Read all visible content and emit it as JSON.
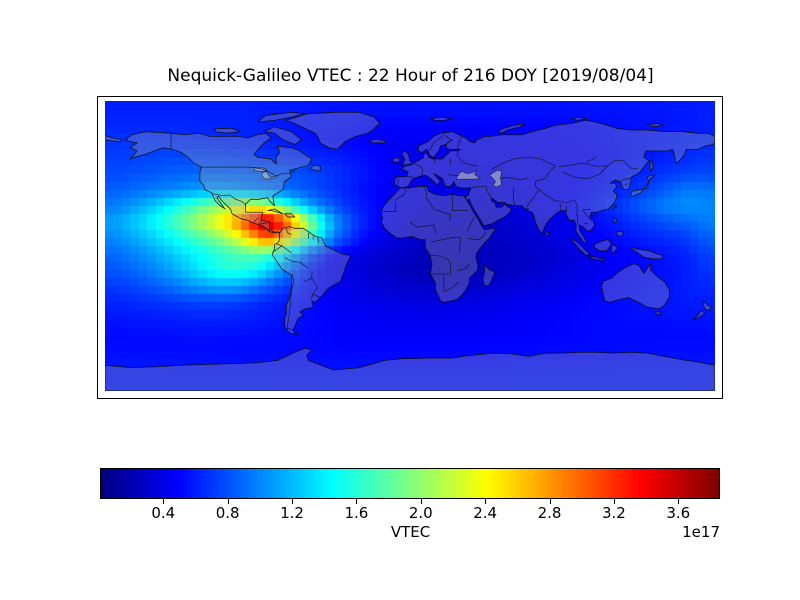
{
  "figure": {
    "title": "Nequick-Galileo VTEC : 22 Hour of 216 DOY [2019/08/04]",
    "background_color": "#ffffff"
  },
  "colorbar": {
    "label": "VTEC",
    "offset_label": "1e17",
    "colormap": "jet",
    "vmin": 0.01,
    "vmax": 3.85,
    "tick_labels": [
      "0.4",
      "0.8",
      "1.2",
      "1.6",
      "2.0",
      "2.4",
      "2.8",
      "3.2",
      "3.6"
    ],
    "tick_values": [
      0.4,
      0.8,
      1.2,
      1.6,
      2.0,
      2.4,
      2.8,
      3.2,
      3.6
    ]
  },
  "chart_data": {
    "type": "heatmap",
    "title": "Nequick-Galileo VTEC : 22 Hour of 216 DOY [2019/08/04]",
    "colorbar_label": "VTEC",
    "value_scale": "1e17",
    "colormap": "jet",
    "vmin": 0.01,
    "vmax": 3.85,
    "projection": "equirectangular world map with coastlines and country borders",
    "lon_range": [
      -180,
      180
    ],
    "lat_range": [
      -90,
      90
    ],
    "grid_lon_start": -175,
    "grid_lon_step": 10,
    "grid_lat_start": 85,
    "grid_lat_step": -10,
    "values_by_lat_row": [
      [
        0.6,
        0.6,
        0.6,
        0.6,
        0.6,
        0.6,
        0.6,
        0.6,
        0.6,
        0.58,
        0.58,
        0.58,
        0.56,
        0.56,
        0.55,
        0.55,
        0.55,
        0.55,
        0.55,
        0.55,
        0.55,
        0.55,
        0.55,
        0.55,
        0.55,
        0.55,
        0.55,
        0.55,
        0.56,
        0.56,
        0.56,
        0.57,
        0.57,
        0.58,
        0.58,
        0.6
      ],
      [
        0.63,
        0.63,
        0.63,
        0.63,
        0.63,
        0.62,
        0.62,
        0.62,
        0.62,
        0.6,
        0.58,
        0.57,
        0.56,
        0.55,
        0.54,
        0.52,
        0.5,
        0.5,
        0.5,
        0.5,
        0.5,
        0.5,
        0.5,
        0.5,
        0.5,
        0.5,
        0.5,
        0.51,
        0.52,
        0.53,
        0.54,
        0.55,
        0.56,
        0.57,
        0.58,
        0.6
      ],
      [
        0.68,
        0.68,
        0.68,
        0.68,
        0.67,
        0.66,
        0.65,
        0.64,
        0.62,
        0.6,
        0.58,
        0.56,
        0.54,
        0.52,
        0.5,
        0.48,
        0.46,
        0.45,
        0.45,
        0.45,
        0.45,
        0.45,
        0.46,
        0.46,
        0.47,
        0.47,
        0.48,
        0.49,
        0.5,
        0.52,
        0.54,
        0.56,
        0.58,
        0.6,
        0.62,
        0.64
      ],
      [
        0.72,
        0.73,
        0.74,
        0.75,
        0.76,
        0.76,
        0.75,
        0.74,
        0.72,
        0.7,
        0.68,
        0.66,
        0.63,
        0.6,
        0.56,
        0.52,
        0.48,
        0.45,
        0.44,
        0.43,
        0.43,
        0.43,
        0.44,
        0.44,
        0.45,
        0.45,
        0.46,
        0.47,
        0.49,
        0.51,
        0.53,
        0.56,
        0.59,
        0.62,
        0.65,
        0.68
      ],
      [
        0.76,
        0.78,
        0.81,
        0.84,
        0.87,
        0.88,
        0.88,
        0.87,
        0.86,
        0.84,
        0.82,
        0.79,
        0.74,
        0.68,
        0.62,
        0.55,
        0.5,
        0.46,
        0.44,
        0.42,
        0.42,
        0.42,
        0.42,
        0.43,
        0.44,
        0.45,
        0.46,
        0.48,
        0.5,
        0.53,
        0.57,
        0.61,
        0.66,
        0.71,
        0.75,
        0.76
      ],
      [
        0.84,
        0.88,
        0.93,
        0.98,
        1.03,
        1.08,
        1.1,
        1.08,
        1.02,
        0.96,
        0.9,
        0.84,
        0.76,
        0.68,
        0.6,
        0.52,
        0.47,
        0.44,
        0.42,
        0.4,
        0.39,
        0.39,
        0.4,
        0.41,
        0.42,
        0.44,
        0.46,
        0.49,
        0.52,
        0.56,
        0.62,
        0.7,
        0.78,
        0.88,
        0.96,
        0.92
      ],
      [
        0.95,
        1.05,
        1.18,
        1.35,
        1.55,
        1.75,
        1.95,
        2.15,
        2.3,
        2.15,
        1.7,
        1.3,
        1.0,
        0.8,
        0.65,
        0.55,
        0.48,
        0.42,
        0.38,
        0.35,
        0.34,
        0.34,
        0.36,
        0.38,
        0.4,
        0.43,
        0.46,
        0.5,
        0.56,
        0.63,
        0.72,
        0.83,
        0.93,
        1.0,
        1.04,
        1.0
      ],
      [
        1.1,
        1.22,
        1.38,
        1.58,
        1.82,
        2.08,
        2.35,
        2.7,
        3.25,
        3.75,
        3.3,
        2.5,
        1.7,
        1.1,
        0.78,
        0.58,
        0.47,
        0.4,
        0.35,
        0.31,
        0.29,
        0.29,
        0.3,
        0.31,
        0.33,
        0.36,
        0.39,
        0.43,
        0.49,
        0.55,
        0.62,
        0.69,
        0.76,
        0.83,
        0.88,
        0.95
      ],
      [
        1.0,
        1.1,
        1.22,
        1.38,
        1.55,
        1.72,
        1.92,
        2.18,
        2.6,
        3.05,
        2.75,
        2.1,
        1.45,
        0.95,
        0.68,
        0.5,
        0.4,
        0.34,
        0.3,
        0.27,
        0.26,
        0.26,
        0.27,
        0.28,
        0.3,
        0.33,
        0.36,
        0.4,
        0.45,
        0.5,
        0.55,
        0.59,
        0.63,
        0.67,
        0.73,
        0.85
      ],
      [
        0.88,
        0.96,
        1.06,
        1.18,
        1.32,
        1.45,
        1.57,
        1.68,
        1.78,
        1.72,
        1.45,
        1.05,
        0.72,
        0.52,
        0.42,
        0.36,
        0.31,
        0.28,
        0.25,
        0.23,
        0.22,
        0.23,
        0.24,
        0.26,
        0.28,
        0.3,
        0.33,
        0.36,
        0.4,
        0.44,
        0.48,
        0.51,
        0.54,
        0.58,
        0.64,
        0.74
      ],
      [
        0.8,
        0.87,
        0.95,
        1.06,
        1.2,
        1.36,
        1.52,
        1.62,
        1.55,
        1.35,
        1.05,
        0.75,
        0.55,
        0.44,
        0.37,
        0.32,
        0.28,
        0.25,
        0.22,
        0.21,
        0.21,
        0.22,
        0.24,
        0.26,
        0.28,
        0.31,
        0.34,
        0.37,
        0.41,
        0.45,
        0.48,
        0.51,
        0.53,
        0.56,
        0.6,
        0.68
      ],
      [
        0.7,
        0.74,
        0.8,
        0.88,
        0.98,
        1.08,
        1.15,
        1.15,
        1.05,
        0.9,
        0.75,
        0.62,
        0.52,
        0.45,
        0.4,
        0.36,
        0.33,
        0.31,
        0.29,
        0.28,
        0.28,
        0.29,
        0.31,
        0.33,
        0.35,
        0.37,
        0.39,
        0.42,
        0.45,
        0.48,
        0.51,
        0.53,
        0.55,
        0.57,
        0.6,
        0.63
      ],
      [
        0.62,
        0.64,
        0.66,
        0.69,
        0.72,
        0.74,
        0.74,
        0.72,
        0.68,
        0.63,
        0.58,
        0.54,
        0.5,
        0.46,
        0.43,
        0.41,
        0.39,
        0.38,
        0.37,
        0.37,
        0.37,
        0.38,
        0.39,
        0.4,
        0.42,
        0.44,
        0.46,
        0.48,
        0.5,
        0.52,
        0.53,
        0.55,
        0.56,
        0.57,
        0.59,
        0.6
      ],
      [
        0.56,
        0.57,
        0.58,
        0.59,
        0.6,
        0.61,
        0.61,
        0.6,
        0.59,
        0.57,
        0.55,
        0.53,
        0.51,
        0.49,
        0.47,
        0.46,
        0.45,
        0.44,
        0.44,
        0.44,
        0.44,
        0.45,
        0.45,
        0.46,
        0.47,
        0.48,
        0.49,
        0.5,
        0.51,
        0.52,
        0.53,
        0.54,
        0.54,
        0.55,
        0.55,
        0.56
      ],
      [
        0.52,
        0.52,
        0.53,
        0.53,
        0.54,
        0.54,
        0.54,
        0.54,
        0.53,
        0.53,
        0.52,
        0.51,
        0.5,
        0.49,
        0.48,
        0.48,
        0.47,
        0.47,
        0.47,
        0.47,
        0.47,
        0.47,
        0.48,
        0.48,
        0.49,
        0.49,
        0.5,
        0.5,
        0.51,
        0.51,
        0.52,
        0.52,
        0.52,
        0.52,
        0.52,
        0.52
      ],
      [
        0.54,
        0.54,
        0.54,
        0.53,
        0.53,
        0.53,
        0.53,
        0.52,
        0.52,
        0.52,
        0.51,
        0.51,
        0.51,
        0.5,
        0.5,
        0.5,
        0.5,
        0.5,
        0.5,
        0.5,
        0.5,
        0.5,
        0.51,
        0.51,
        0.51,
        0.52,
        0.52,
        0.52,
        0.53,
        0.53,
        0.53,
        0.53,
        0.54,
        0.54,
        0.54,
        0.54
      ],
      [
        0.57,
        0.57,
        0.57,
        0.57,
        0.56,
        0.56,
        0.56,
        0.56,
        0.56,
        0.56,
        0.55,
        0.55,
        0.55,
        0.55,
        0.55,
        0.55,
        0.55,
        0.55,
        0.55,
        0.55,
        0.55,
        0.55,
        0.55,
        0.55,
        0.56,
        0.56,
        0.56,
        0.56,
        0.56,
        0.56,
        0.57,
        0.57,
        0.57,
        0.57,
        0.57,
        0.57
      ],
      [
        0.58,
        0.58,
        0.58,
        0.58,
        0.58,
        0.58,
        0.58,
        0.58,
        0.58,
        0.58,
        0.58,
        0.58,
        0.58,
        0.58,
        0.58,
        0.58,
        0.58,
        0.58,
        0.58,
        0.58,
        0.58,
        0.58,
        0.58,
        0.58,
        0.58,
        0.58,
        0.58,
        0.58,
        0.58,
        0.58,
        0.58,
        0.58,
        0.58,
        0.58,
        0.58,
        0.58
      ]
    ]
  }
}
